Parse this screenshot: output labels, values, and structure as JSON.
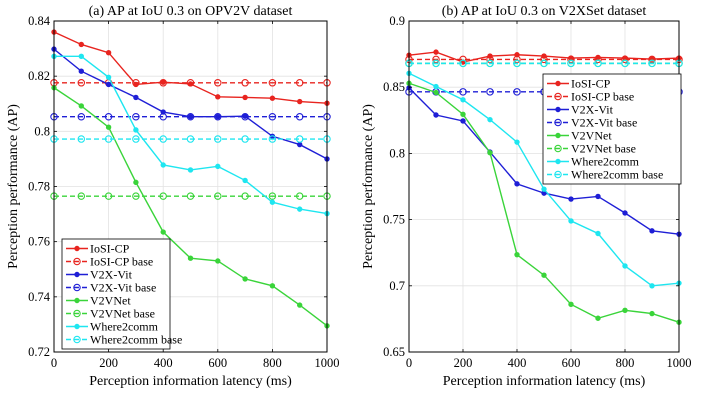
{
  "chart_data": [
    {
      "type": "line",
      "title": "(a) AP at IoU 0.3 on OPV2V dataset",
      "xlabel": "Perception information latency (ms)",
      "ylabel": "Perception performance (AP)",
      "xlim": [
        0,
        1000
      ],
      "ylim": [
        0.72,
        0.84
      ],
      "xticks": [
        0,
        200,
        400,
        600,
        800,
        1000
      ],
      "yticks": [
        0.72,
        0.74,
        0.76,
        0.78,
        0.8,
        0.82,
        0.84
      ],
      "ytick_labels": [
        "0.72",
        "0.74",
        "0.76",
        "0.78",
        "0.8",
        "0.82",
        "0.84"
      ],
      "grid": true,
      "legend_position": "bottom-left",
      "x": [
        0,
        100,
        200,
        300,
        400,
        500,
        600,
        700,
        800,
        900,
        1000
      ],
      "series": [
        {
          "name": "IoSI-CP",
          "color": "#e8241f",
          "marker": "dot",
          "dashed": false,
          "values": [
            0.836,
            0.8315,
            0.8285,
            0.817,
            0.8178,
            0.8172,
            0.8125,
            0.8123,
            0.812,
            0.8108,
            0.8102
          ]
        },
        {
          "name": "IoSI-CP base",
          "color": "#e8241f",
          "marker": "circle",
          "dashed": true,
          "values": [
            0.8176,
            0.8176,
            0.8176,
            0.8176,
            0.8176,
            0.8176,
            0.8176,
            0.8176,
            0.8176,
            0.8176,
            0.8176
          ]
        },
        {
          "name": "V2X-Vit",
          "color": "#1f1fd6",
          "marker": "dot",
          "dashed": false,
          "values": [
            0.8298,
            0.8218,
            0.817,
            0.8123,
            0.807,
            0.8053,
            0.8053,
            0.8055,
            0.7982,
            0.7952,
            0.79
          ]
        },
        {
          "name": "V2X-Vit base",
          "color": "#1f1fd6",
          "marker": "circle",
          "dashed": true,
          "values": [
            0.8053,
            0.8053,
            0.8053,
            0.8053,
            0.8053,
            0.8053,
            0.8053,
            0.8053,
            0.8053,
            0.8053,
            0.8053
          ]
        },
        {
          "name": "V2VNet",
          "color": "#3ad43a",
          "marker": "dot",
          "dashed": false,
          "values": [
            0.8158,
            0.8092,
            0.8015,
            0.7815,
            0.7635,
            0.754,
            0.753,
            0.7465,
            0.744,
            0.737,
            0.7295
          ]
        },
        {
          "name": "V2VNet base",
          "color": "#3ad43a",
          "marker": "circle",
          "dashed": true,
          "values": [
            0.7765,
            0.7765,
            0.7765,
            0.7765,
            0.7765,
            0.7765,
            0.7765,
            0.7765,
            0.7765,
            0.7765,
            0.7765
          ]
        },
        {
          "name": "Where2comm",
          "color": "#1ee6f0",
          "marker": "dot",
          "dashed": false,
          "values": [
            0.8272,
            0.8272,
            0.8196,
            0.8005,
            0.7878,
            0.786,
            0.7873,
            0.7822,
            0.7743,
            0.7718,
            0.7702
          ]
        },
        {
          "name": "Where2comm base",
          "color": "#1ee6f0",
          "marker": "circle",
          "dashed": true,
          "values": [
            0.7972,
            0.7972,
            0.7972,
            0.7972,
            0.7972,
            0.7972,
            0.7972,
            0.7972,
            0.7972,
            0.7972,
            0.7972
          ]
        }
      ]
    },
    {
      "type": "line",
      "title": "(b) AP at IoU 0.3 on V2XSet dataset",
      "xlabel": "Perception information latency (ms)",
      "ylabel": "Perception performance (AP)",
      "xlim": [
        0,
        1000
      ],
      "ylim": [
        0.65,
        0.9
      ],
      "xticks": [
        0,
        200,
        400,
        600,
        800,
        1000
      ],
      "yticks": [
        0.65,
        0.7,
        0.75,
        0.8,
        0.85,
        0.9
      ],
      "ytick_labels": [
        "0.65",
        "0.7",
        "0.75",
        "0.8",
        "0.85",
        "0.9"
      ],
      "grid": true,
      "legend_position": "top-right",
      "x": [
        0,
        100,
        200,
        300,
        400,
        500,
        600,
        700,
        800,
        900,
        1000
      ],
      "series": [
        {
          "name": "IoSI-CP",
          "color": "#e8241f",
          "marker": "dot",
          "dashed": false,
          "values": [
            0.8742,
            0.8765,
            0.869,
            0.8735,
            0.8745,
            0.8735,
            0.872,
            0.8725,
            0.872,
            0.8712,
            0.872
          ]
        },
        {
          "name": "IoSI-CP base",
          "color": "#e8241f",
          "marker": "circle",
          "dashed": true,
          "values": [
            0.871,
            0.871,
            0.871,
            0.871,
            0.871,
            0.871,
            0.871,
            0.871,
            0.871,
            0.871,
            0.871
          ]
        },
        {
          "name": "V2X-Vit",
          "color": "#1f1fd6",
          "marker": "dot",
          "dashed": false,
          "values": [
            0.8495,
            0.829,
            0.8245,
            0.801,
            0.777,
            0.77,
            0.7655,
            0.7675,
            0.755,
            0.7415,
            0.739
          ]
        },
        {
          "name": "V2X-Vit base",
          "color": "#1f1fd6",
          "marker": "circle",
          "dashed": true,
          "values": [
            0.8465,
            0.8465,
            0.8465,
            0.8465,
            0.8465,
            0.8465,
            0.8465,
            0.8465,
            0.8465,
            0.8465,
            0.8465
          ]
        },
        {
          "name": "V2VNet",
          "color": "#3ad43a",
          "marker": "dot",
          "dashed": false,
          "values": [
            0.853,
            0.846,
            0.8295,
            0.8005,
            0.7235,
            0.708,
            0.686,
            0.6755,
            0.6815,
            0.679,
            0.6725
          ]
        },
        {
          "name": "V2VNet base",
          "color": "#3ad43a",
          "marker": "circle",
          "dashed": true,
          "values": [
            0.868,
            0.868,
            0.868,
            0.868,
            0.868,
            0.868,
            0.868,
            0.868,
            0.868,
            0.868,
            0.868
          ]
        },
        {
          "name": "Where2comm",
          "color": "#1ee6f0",
          "marker": "dot",
          "dashed": false,
          "values": [
            0.8605,
            0.8505,
            0.8405,
            0.8255,
            0.8085,
            0.773,
            0.749,
            0.7395,
            0.715,
            0.7,
            0.702
          ]
        },
        {
          "name": "Where2comm base",
          "color": "#1ee6f0",
          "marker": "circle",
          "dashed": true,
          "values": [
            0.868,
            0.868,
            0.868,
            0.868,
            0.868,
            0.868,
            0.868,
            0.868,
            0.868,
            0.868,
            0.868
          ]
        }
      ]
    }
  ]
}
